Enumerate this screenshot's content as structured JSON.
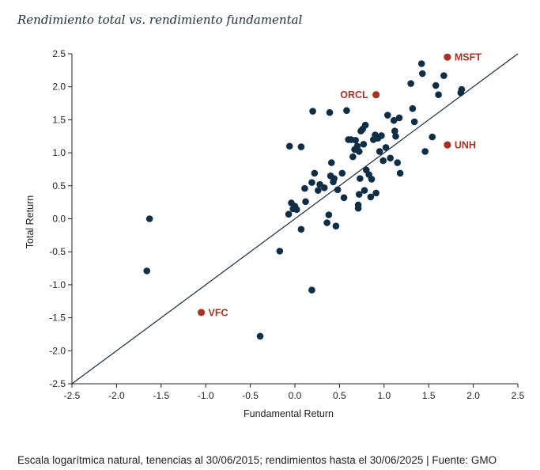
{
  "colors": {
    "point": "#0f2e45",
    "highlight": "#a93226",
    "axis": "#222222",
    "diagonal": "#1a2a3a"
  },
  "chart_data": {
    "type": "scatter",
    "title": "Rendimiento total vs. rendimiento fundamental",
    "xlabel": "Fundamental Return",
    "ylabel": "Total Return",
    "xlim": [
      -2.5,
      2.5
    ],
    "ylim": [
      -2.5,
      2.5
    ],
    "xticks": [
      -2.5,
      -2.0,
      -1.5,
      -1.0,
      -0.5,
      0.0,
      0.5,
      1.0,
      1.5,
      2.0,
      2.5
    ],
    "yticks": [
      -2.5,
      -2.0,
      -1.5,
      -1.0,
      -0.5,
      0.0,
      0.5,
      1.0,
      1.5,
      2.0,
      2.5
    ],
    "tick_labels_x": [
      "-2.5",
      "-2.0",
      "-1.5",
      "-1.0",
      "-0.5",
      "0.0",
      "0.5",
      "1.0",
      "1.5",
      "2.0",
      "2.5"
    ],
    "tick_labels_y": [
      "-2.5",
      "-2.0",
      "-1.5",
      "-1.0",
      "-0.5",
      "0.0",
      "0.5",
      "1.0",
      "1.5",
      "2.0",
      "2.5"
    ],
    "reference_line": {
      "x": [
        -2.5,
        2.5
      ],
      "y": [
        -2.5,
        2.5
      ]
    },
    "grid": false,
    "points": [
      {
        "x": -1.63,
        "y": 0.0
      },
      {
        "x": -1.66,
        "y": -0.79
      },
      {
        "x": -0.39,
        "y": -1.78
      },
      {
        "x": -0.17,
        "y": -0.49
      },
      {
        "x": 0.19,
        "y": -1.08
      },
      {
        "x": -0.07,
        "y": 0.07
      },
      {
        "x": -0.04,
        "y": 0.24
      },
      {
        "x": -0.02,
        "y": 0.15
      },
      {
        "x": 0.0,
        "y": 0.19
      },
      {
        "x": 0.02,
        "y": 0.14
      },
      {
        "x": 0.07,
        "y": -0.16
      },
      {
        "x": 0.11,
        "y": 0.46
      },
      {
        "x": 0.12,
        "y": 0.26
      },
      {
        "x": 0.19,
        "y": 0.55
      },
      {
        "x": 0.22,
        "y": 0.69
      },
      {
        "x": 0.26,
        "y": 0.43
      },
      {
        "x": 0.28,
        "y": 0.52
      },
      {
        "x": 0.33,
        "y": 0.47
      },
      {
        "x": 0.36,
        "y": -0.06
      },
      {
        "x": 0.38,
        "y": 0.06
      },
      {
        "x": 0.4,
        "y": 0.65
      },
      {
        "x": 0.41,
        "y": 0.85
      },
      {
        "x": 0.43,
        "y": 0.56
      },
      {
        "x": 0.44,
        "y": 0.61
      },
      {
        "x": 0.46,
        "y": -0.11
      },
      {
        "x": 0.48,
        "y": 0.44
      },
      {
        "x": 0.53,
        "y": 0.69
      },
      {
        "x": 0.55,
        "y": 0.32
      },
      {
        "x": 0.58,
        "y": 1.64
      },
      {
        "x": 0.6,
        "y": 1.2
      },
      {
        "x": 0.63,
        "y": 1.2
      },
      {
        "x": 0.65,
        "y": 0.94
      },
      {
        "x": 0.67,
        "y": 1.05
      },
      {
        "x": 0.68,
        "y": 1.19
      },
      {
        "x": 0.7,
        "y": 1.1
      },
      {
        "x": 0.72,
        "y": 1.02
      },
      {
        "x": 0.72,
        "y": 0.37
      },
      {
        "x": 0.71,
        "y": 0.21
      },
      {
        "x": 0.71,
        "y": 0.16
      },
      {
        "x": 0.73,
        "y": 0.61
      },
      {
        "x": 0.74,
        "y": 1.33
      },
      {
        "x": 0.76,
        "y": 1.36
      },
      {
        "x": 0.77,
        "y": 1.13
      },
      {
        "x": 0.78,
        "y": 0.43
      },
      {
        "x": 0.79,
        "y": 1.42
      },
      {
        "x": 0.8,
        "y": 0.74
      },
      {
        "x": 0.83,
        "y": 0.67
      },
      {
        "x": 0.85,
        "y": 0.33
      },
      {
        "x": 0.86,
        "y": 0.6
      },
      {
        "x": 0.88,
        "y": 1.2
      },
      {
        "x": 0.9,
        "y": 1.27
      },
      {
        "x": 0.91,
        "y": 0.39
      },
      {
        "x": 0.93,
        "y": 1.22
      },
      {
        "x": 0.95,
        "y": 1.02
      },
      {
        "x": 0.97,
        "y": 1.26
      },
      {
        "x": 0.99,
        "y": 0.88
      },
      {
        "x": 1.02,
        "y": 1.08
      },
      {
        "x": 1.04,
        "y": 1.57
      },
      {
        "x": 1.07,
        "y": 0.92
      },
      {
        "x": 1.11,
        "y": 1.49
      },
      {
        "x": 1.12,
        "y": 1.33
      },
      {
        "x": 1.13,
        "y": 1.25
      },
      {
        "x": 1.15,
        "y": 0.85
      },
      {
        "x": 1.17,
        "y": 1.53
      },
      {
        "x": 1.18,
        "y": 0.69
      },
      {
        "x": 1.3,
        "y": 2.05
      },
      {
        "x": 1.32,
        "y": 1.67
      },
      {
        "x": 1.34,
        "y": 1.47
      },
      {
        "x": 1.42,
        "y": 2.35
      },
      {
        "x": 1.43,
        "y": 2.2
      },
      {
        "x": 1.46,
        "y": 1.02
      },
      {
        "x": 1.54,
        "y": 1.24
      },
      {
        "x": 1.58,
        "y": 2.02
      },
      {
        "x": 1.61,
        "y": 1.88
      },
      {
        "x": 1.67,
        "y": 2.17
      },
      {
        "x": 1.86,
        "y": 1.91
      },
      {
        "x": 1.87,
        "y": 1.96
      },
      {
        "x": 0.2,
        "y": 1.63
      },
      {
        "x": 0.39,
        "y": 1.61
      },
      {
        "x": -0.06,
        "y": 1.1
      },
      {
        "x": 0.07,
        "y": 1.09
      }
    ],
    "highlighted": [
      {
        "label": "MSFT",
        "x": 1.71,
        "y": 2.45
      },
      {
        "label": "ORCL",
        "x": 0.91,
        "y": 1.88
      },
      {
        "label": "UNH",
        "x": 1.71,
        "y": 1.12
      },
      {
        "label": "VFC",
        "x": -1.05,
        "y": -1.42
      }
    ]
  },
  "footnote": "Escala logarítmica natural, tenencias al 30/06/2015; rendimientos hasta el 30/06/2025 | Fuente: GMO"
}
